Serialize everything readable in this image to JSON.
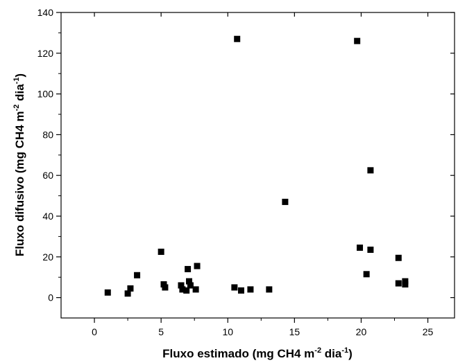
{
  "chart_data": {
    "type": "scatter",
    "title": "",
    "xlabel": {
      "main": "Fluxo estimado (mg CH4  m",
      "sup1": "-2",
      "mid": " dia",
      "sup2": "-1",
      "end": ")"
    },
    "ylabel": {
      "main": "Fluxo difusivo (mg CH4  m",
      "sup1": "-2",
      "mid": " dia",
      "sup2": "-1",
      "end": ")"
    },
    "xlim": [
      -2.5,
      27
    ],
    "ylim": [
      -10,
      140
    ],
    "xticks": [
      0,
      5,
      10,
      15,
      20,
      25
    ],
    "yticks": [
      0,
      20,
      40,
      60,
      80,
      100,
      120,
      140
    ],
    "grid": false,
    "marker": "square",
    "marker_color": "#000000",
    "points": [
      {
        "x": 1.0,
        "y": 2.5
      },
      {
        "x": 2.5,
        "y": 2.0
      },
      {
        "x": 2.7,
        "y": 4.5
      },
      {
        "x": 3.2,
        "y": 11.0
      },
      {
        "x": 5.0,
        "y": 22.5
      },
      {
        "x": 5.2,
        "y": 6.5
      },
      {
        "x": 5.3,
        "y": 5.0
      },
      {
        "x": 6.5,
        "y": 6.0
      },
      {
        "x": 6.6,
        "y": 4.0
      },
      {
        "x": 6.9,
        "y": 3.5
      },
      {
        "x": 7.0,
        "y": 14.0
      },
      {
        "x": 7.1,
        "y": 8.0
      },
      {
        "x": 7.2,
        "y": 6.0
      },
      {
        "x": 7.6,
        "y": 4.0
      },
      {
        "x": 7.7,
        "y": 15.5
      },
      {
        "x": 10.5,
        "y": 5.0
      },
      {
        "x": 10.7,
        "y": 127.0
      },
      {
        "x": 11.0,
        "y": 3.5
      },
      {
        "x": 11.7,
        "y": 4.0
      },
      {
        "x": 13.1,
        "y": 4.0
      },
      {
        "x": 14.3,
        "y": 47.0
      },
      {
        "x": 19.7,
        "y": 126.0
      },
      {
        "x": 19.9,
        "y": 24.5
      },
      {
        "x": 20.4,
        "y": 11.5
      },
      {
        "x": 20.7,
        "y": 62.5
      },
      {
        "x": 20.7,
        "y": 23.5
      },
      {
        "x": 22.8,
        "y": 19.5
      },
      {
        "x": 22.8,
        "y": 7.0
      },
      {
        "x": 23.3,
        "y": 8.0
      },
      {
        "x": 23.3,
        "y": 6.5
      }
    ]
  }
}
